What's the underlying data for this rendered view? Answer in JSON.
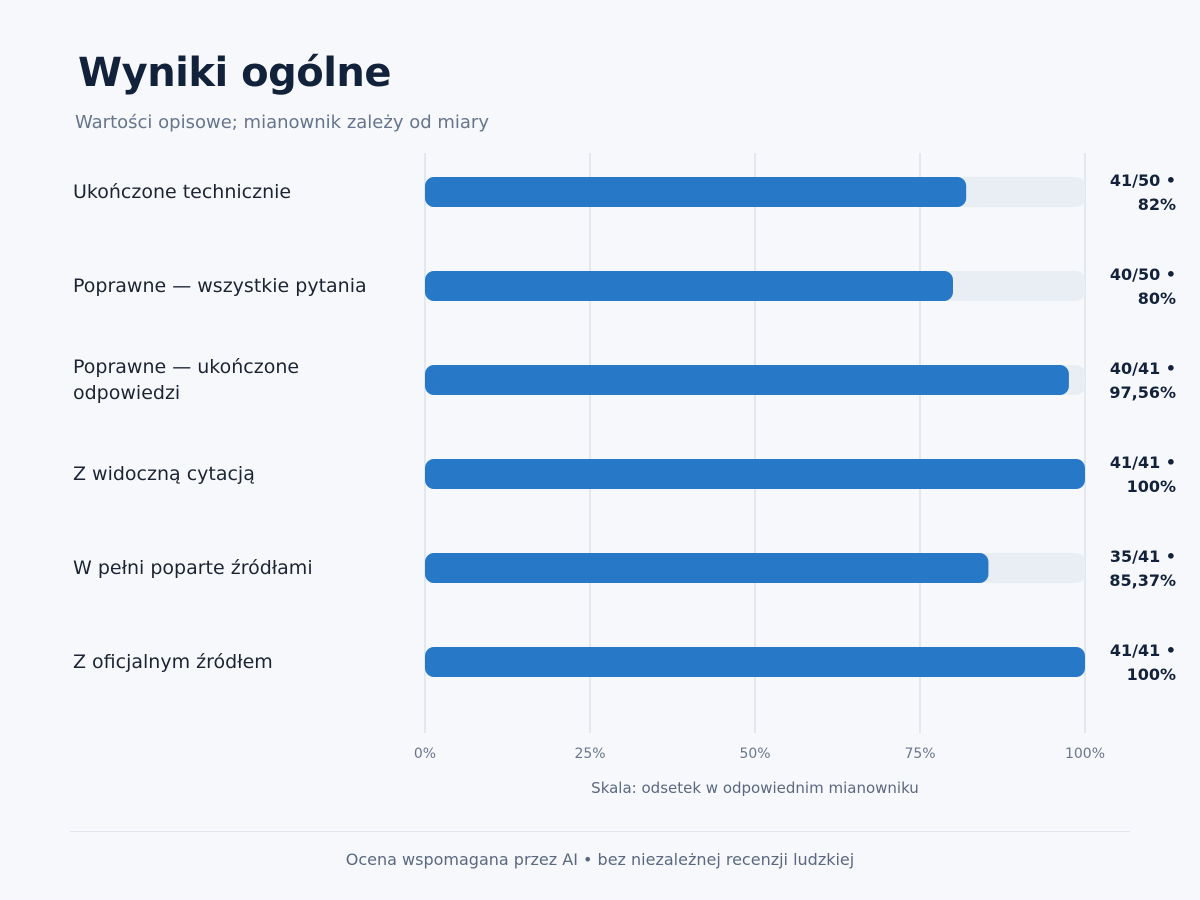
{
  "header": {
    "title": "Wyniki ogólne",
    "subtitle": "Wartości opisowe; mianownik zależy od miary"
  },
  "chart_data": {
    "type": "bar",
    "orientation": "horizontal",
    "title": "Wyniki ogólne",
    "subtitle": "Wartości opisowe; mianownik zależy od miary",
    "categories": [
      "Ukończone technicznie",
      "Poprawne — wszystkie pytania",
      "Poprawne — ukończone odpowiedzi",
      "Z widoczną cytacją",
      "W pełni poparte źródłami",
      "Z oficjalnym źródłem"
    ],
    "category_lines": [
      [
        "Ukończone technicznie"
      ],
      [
        "Poprawne — wszystkie pytania"
      ],
      [
        "Poprawne — ukończone",
        "odpowiedzi"
      ],
      [
        "Z widoczną cytacją"
      ],
      [
        "W pełni poparte źródłami"
      ],
      [
        "Z oficjalnym źródłem"
      ]
    ],
    "values": [
      82,
      80,
      97.56,
      100,
      85.37,
      100
    ],
    "value_labels": [
      [
        "41/50 •",
        "82%"
      ],
      [
        "40/50 •",
        "80%"
      ],
      [
        "40/41 •",
        "97,56%"
      ],
      [
        "41/41 •",
        "100%"
      ],
      [
        "35/41 •",
        "85,37%"
      ],
      [
        "41/41 •",
        "100%"
      ]
    ],
    "xlim": [
      0,
      100
    ],
    "x_ticks": [
      0,
      25,
      50,
      75,
      100
    ],
    "x_tick_labels": [
      "0%",
      "25%",
      "50%",
      "75%",
      "100%"
    ],
    "xlabel": "Skala: odsetek w odpowiednim mianowniku",
    "grid": true,
    "colors": {
      "bar": "#2878c8",
      "track": "#e9eef5",
      "grid": "#e3e8ef"
    }
  },
  "footer": {
    "note": "Ocena wspomagana przez AI • bez niezależnej recenzji ludzkiej"
  }
}
